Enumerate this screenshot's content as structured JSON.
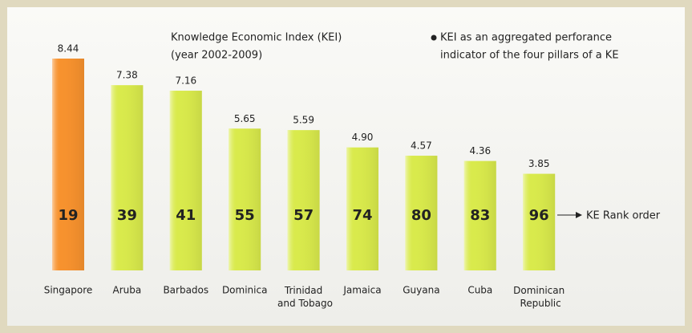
{
  "chart_data": {
    "type": "bar",
    "title": "Knowledge Economic Index (KEI)",
    "subtitle": "(year 2002-2009)",
    "annotation": [
      "KEI as an aggregated perforance",
      "indicator of the four pillars of a KE"
    ],
    "rank_label": "KE Rank order",
    "categories": [
      "Singapore",
      "Aruba",
      "Barbados",
      "Dominica",
      "Trinidad and Tobago",
      "Jamaica",
      "Guyana",
      "Cuba",
      "Dominican Republic"
    ],
    "values": [
      8.44,
      7.38,
      7.16,
      5.65,
      5.59,
      4.9,
      4.57,
      4.36,
      3.85
    ],
    "value_labels": [
      "8.44",
      "7.38",
      "7.16",
      "5.65",
      "5.59",
      "4.90",
      "4.57",
      "4.36",
      "3.85"
    ],
    "ranks": [
      19,
      39,
      41,
      55,
      57,
      74,
      80,
      83,
      96
    ],
    "colors": [
      "#f7922e",
      "#d9ea4c",
      "#d9ea4c",
      "#d9ea4c",
      "#d9ea4c",
      "#d9ea4c",
      "#d9ea4c",
      "#d9ea4c",
      "#d9ea4c"
    ]
  }
}
